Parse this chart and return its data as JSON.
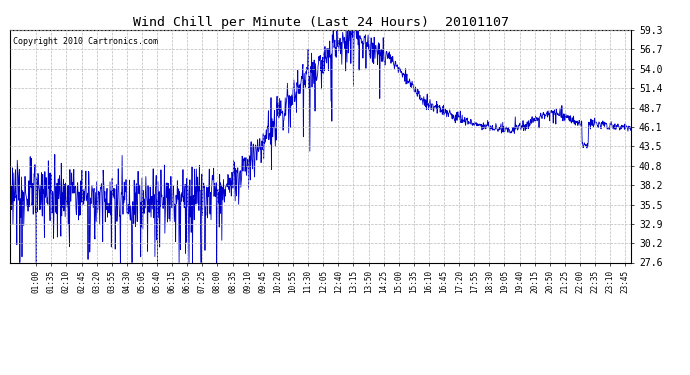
{
  "title": "Wind Chill per Minute (Last 24 Hours)  20101107",
  "copyright": "Copyright 2010 Cartronics.com",
  "line_color": "#0000cc",
  "background_color": "#ffffff",
  "grid_color": "#aaaaaa",
  "y_ticks": [
    27.6,
    30.2,
    32.9,
    35.5,
    38.2,
    40.8,
    43.5,
    46.1,
    48.7,
    51.4,
    54.0,
    56.7,
    59.3
  ],
  "ylim": [
    27.6,
    59.3
  ],
  "x_tick_labels": [
    "01:00",
    "01:35",
    "02:10",
    "02:45",
    "03:20",
    "03:55",
    "04:30",
    "05:05",
    "05:40",
    "06:15",
    "06:50",
    "07:25",
    "08:00",
    "08:35",
    "09:10",
    "09:45",
    "10:20",
    "10:55",
    "11:30",
    "12:05",
    "12:40",
    "13:15",
    "13:50",
    "14:25",
    "15:00",
    "15:35",
    "16:10",
    "16:45",
    "17:20",
    "17:55",
    "18:30",
    "19:05",
    "19:40",
    "20:15",
    "20:50",
    "21:25",
    "22:00",
    "22:35",
    "23:10",
    "23:45"
  ]
}
